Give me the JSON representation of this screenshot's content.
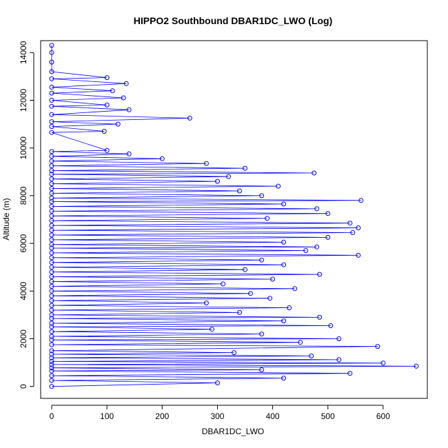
{
  "chart_data": {
    "type": "line",
    "title": "HIPPO2 Southbound DBAR1DC_LWO (Log)",
    "xlabel": "DBAR1DC_LWO",
    "ylabel": "Altitude (m)",
    "xlim": [
      -20,
      680
    ],
    "ylim": [
      -500,
      14500
    ],
    "xticks": [
      0,
      100,
      200,
      300,
      400,
      500,
      600
    ],
    "yticks": [
      0,
      2000,
      4000,
      6000,
      8000,
      10000,
      12000,
      14000
    ],
    "series_color": "#0000ff",
    "marker": "open-circle",
    "series": [
      {
        "points": [
          [
            0,
            0
          ],
          [
            300,
            150
          ],
          [
            0,
            250
          ],
          [
            420,
            350
          ],
          [
            0,
            450
          ],
          [
            540,
            550
          ],
          [
            0,
            650
          ],
          [
            380,
            700
          ],
          [
            0,
            780
          ],
          [
            660,
            850
          ],
          [
            0,
            920
          ],
          [
            600,
            980
          ],
          [
            0,
            1050
          ],
          [
            520,
            1120
          ],
          [
            0,
            1200
          ],
          [
            470,
            1280
          ],
          [
            0,
            1350
          ],
          [
            330,
            1420
          ],
          [
            0,
            1500
          ],
          [
            590,
            1680
          ],
          [
            0,
            1750
          ],
          [
            450,
            1850
          ],
          [
            0,
            1950
          ],
          [
            520,
            2000
          ],
          [
            0,
            2100
          ],
          [
            380,
            2200
          ],
          [
            0,
            2300
          ],
          [
            290,
            2400
          ],
          [
            0,
            2500
          ],
          [
            505,
            2550
          ],
          [
            0,
            2650
          ],
          [
            420,
            2750
          ],
          [
            0,
            2850
          ],
          [
            485,
            2900
          ],
          [
            0,
            3000
          ],
          [
            340,
            3100
          ],
          [
            0,
            3200
          ],
          [
            430,
            3300
          ],
          [
            0,
            3400
          ],
          [
            280,
            3500
          ],
          [
            0,
            3600
          ],
          [
            395,
            3700
          ],
          [
            0,
            3800
          ],
          [
            360,
            3900
          ],
          [
            0,
            4000
          ],
          [
            440,
            4100
          ],
          [
            0,
            4200
          ],
          [
            310,
            4300
          ],
          [
            0,
            4400
          ],
          [
            400,
            4500
          ],
          [
            0,
            4600
          ],
          [
            485,
            4700
          ],
          [
            0,
            4800
          ],
          [
            350,
            4900
          ],
          [
            0,
            5000
          ],
          [
            420,
            5100
          ],
          [
            0,
            5200
          ],
          [
            380,
            5300
          ],
          [
            0,
            5400
          ],
          [
            555,
            5500
          ],
          [
            0,
            5600
          ],
          [
            460,
            5700
          ],
          [
            0,
            5800
          ],
          [
            480,
            5850
          ],
          [
            0,
            5950
          ],
          [
            420,
            6050
          ],
          [
            0,
            6150
          ],
          [
            500,
            6250
          ],
          [
            0,
            6350
          ],
          [
            545,
            6450
          ],
          [
            0,
            6550
          ],
          [
            555,
            6650
          ],
          [
            0,
            6750
          ],
          [
            540,
            6850
          ],
          [
            0,
            6950
          ],
          [
            390,
            7050
          ],
          [
            0,
            7150
          ],
          [
            500,
            7250
          ],
          [
            0,
            7350
          ],
          [
            480,
            7450
          ],
          [
            0,
            7550
          ],
          [
            420,
            7650
          ],
          [
            0,
            7750
          ],
          [
            560,
            7800
          ],
          [
            0,
            7900
          ],
          [
            380,
            8000
          ],
          [
            0,
            8100
          ],
          [
            340,
            8200
          ],
          [
            0,
            8300
          ],
          [
            410,
            8400
          ],
          [
            0,
            8500
          ],
          [
            300,
            8600
          ],
          [
            0,
            8700
          ],
          [
            320,
            8800
          ],
          [
            0,
            8900
          ],
          [
            475,
            8950
          ],
          [
            0,
            9050
          ],
          [
            350,
            9150
          ],
          [
            0,
            9250
          ],
          [
            280,
            9350
          ],
          [
            0,
            9450
          ],
          [
            200,
            9550
          ],
          [
            0,
            9650
          ],
          [
            140,
            9750
          ],
          [
            0,
            9850
          ],
          [
            100,
            9900
          ],
          [
            0,
            10650
          ],
          [
            95,
            10700
          ],
          [
            0,
            10900
          ],
          [
            120,
            11000
          ],
          [
            0,
            11100
          ],
          [
            250,
            11250
          ],
          [
            0,
            11400
          ],
          [
            140,
            11600
          ],
          [
            0,
            11750
          ],
          [
            100,
            11800
          ],
          [
            0,
            12000
          ],
          [
            130,
            12100
          ],
          [
            0,
            12300
          ],
          [
            110,
            12400
          ],
          [
            0,
            12550
          ],
          [
            135,
            12700
          ],
          [
            0,
            12900
          ],
          [
            100,
            12950
          ],
          [
            0,
            13200
          ],
          [
            0,
            13600
          ],
          [
            0,
            14000
          ],
          [
            0,
            14300
          ]
        ]
      }
    ]
  }
}
